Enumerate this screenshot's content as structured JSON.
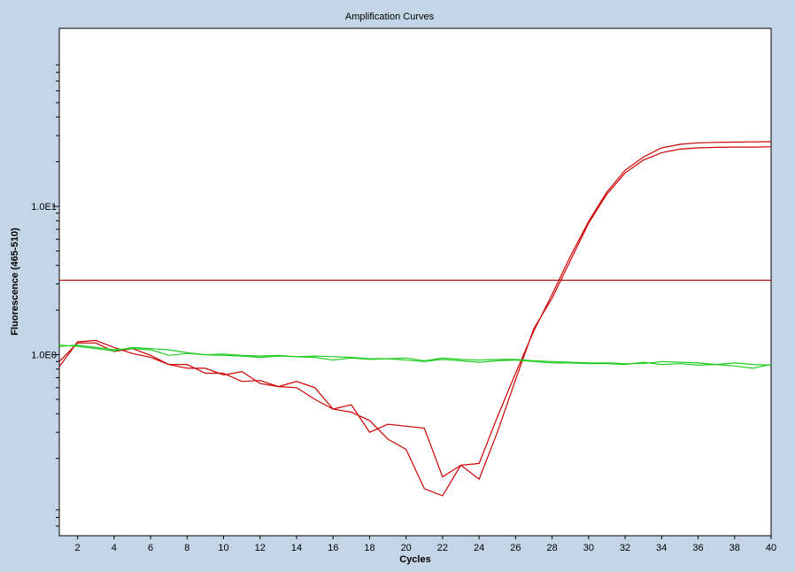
{
  "chart_data": {
    "type": "line",
    "title": "Amplification Curves",
    "xlabel": "Cycles",
    "ylabel": "Fluorescence (465-510)",
    "xlim": [
      1,
      40
    ],
    "ylim_log10": [
      -1.22,
      2.2
    ],
    "yscale": "log",
    "grid": false,
    "x_ticks": [
      2,
      4,
      6,
      8,
      10,
      12,
      14,
      16,
      18,
      20,
      22,
      24,
      26,
      28,
      30,
      32,
      34,
      36,
      38,
      40
    ],
    "x_tick_labels": [
      "2",
      "4",
      "6",
      "8",
      "10",
      "12",
      "14",
      "16",
      "18",
      "20",
      "22",
      "24",
      "26",
      "28",
      "30",
      "32",
      "34",
      "36",
      "38",
      "40"
    ],
    "y_labeled_ticks": [
      1,
      10
    ],
    "y_tick_labels": [
      "1.0E0",
      "1.0E1"
    ],
    "threshold": {
      "value": 3.18,
      "color": "#aa0000"
    },
    "series": [
      {
        "color": "#cc0000",
        "x": [
          1,
          2,
          3,
          4,
          5,
          6,
          7,
          8,
          9,
          10,
          11,
          12,
          13,
          14,
          15,
          16,
          17,
          18,
          19,
          20,
          21,
          22,
          23,
          24,
          25,
          26,
          27,
          28,
          29,
          30,
          31,
          32,
          33,
          34,
          35,
          36,
          37,
          38,
          39,
          40
        ],
        "y": [
          0.83,
          1.22,
          1.25,
          1.12,
          1.02,
          0.96,
          0.86,
          0.86,
          0.75,
          0.75,
          0.66,
          0.67,
          0.61,
          0.6,
          0.5,
          0.43,
          0.46,
          0.3,
          0.34,
          0.33,
          0.32,
          0.15,
          0.18,
          0.185,
          0.38,
          0.75,
          1.45,
          2.55,
          4.6,
          7.9,
          12.5,
          17.5,
          21.5,
          24.8,
          26.2,
          26.8,
          27.0,
          27.1,
          27.2,
          27.3
        ]
      },
      {
        "color": "#cc0000",
        "x": [
          1,
          2,
          3,
          4,
          5,
          6,
          7,
          8,
          9,
          10,
          11,
          12,
          13,
          14,
          15,
          16,
          17,
          18,
          19,
          20,
          21,
          22,
          23,
          24,
          25,
          26,
          27,
          28,
          29,
          30,
          31,
          32,
          33,
          34,
          35,
          36,
          37,
          38,
          39,
          40
        ],
        "y": [
          0.9,
          1.2,
          1.2,
          1.05,
          1.1,
          0.99,
          0.86,
          0.81,
          0.81,
          0.73,
          0.77,
          0.64,
          0.61,
          0.66,
          0.6,
          0.43,
          0.41,
          0.36,
          0.27,
          0.23,
          0.125,
          0.112,
          0.18,
          0.145,
          0.3,
          0.68,
          1.5,
          2.4,
          4.3,
          7.7,
          12.1,
          16.8,
          20.5,
          23.0,
          24.3,
          24.8,
          25.0,
          25.1,
          25.1,
          25.2
        ]
      },
      {
        "color": "#22cc22",
        "x": [
          1,
          2,
          3,
          4,
          5,
          6,
          7,
          8,
          9,
          10,
          11,
          12,
          13,
          14,
          15,
          16,
          17,
          18,
          19,
          20,
          21,
          22,
          23,
          24,
          25,
          26,
          27,
          28,
          29,
          30,
          31,
          32,
          33,
          34,
          35,
          36,
          37,
          38,
          39,
          40
        ],
        "y": [
          1.14,
          1.16,
          1.12,
          1.08,
          1.1,
          1.08,
          0.99,
          1.02,
          1.0,
          0.99,
          0.98,
          0.96,
          0.98,
          0.97,
          0.96,
          0.92,
          0.95,
          0.93,
          0.94,
          0.92,
          0.9,
          0.93,
          0.91,
          0.89,
          0.91,
          0.92,
          0.9,
          0.88,
          0.88,
          0.87,
          0.87,
          0.86,
          0.89,
          0.86,
          0.87,
          0.85,
          0.86,
          0.84,
          0.81,
          0.86
        ]
      },
      {
        "color": "#22cc22",
        "x": [
          1,
          2,
          3,
          4,
          5,
          6,
          7,
          8,
          9,
          10,
          11,
          12,
          13,
          14,
          15,
          16,
          17,
          18,
          19,
          20,
          21,
          22,
          23,
          24,
          25,
          26,
          27,
          28,
          29,
          30,
          31,
          32,
          33,
          34,
          35,
          36,
          37,
          38,
          39,
          40
        ],
        "y": [
          1.16,
          1.14,
          1.1,
          1.06,
          1.12,
          1.1,
          1.08,
          1.03,
          1.0,
          1.01,
          0.99,
          0.98,
          0.99,
          0.97,
          0.98,
          0.97,
          0.96,
          0.94,
          0.94,
          0.95,
          0.91,
          0.95,
          0.93,
          0.92,
          0.93,
          0.93,
          0.91,
          0.9,
          0.89,
          0.88,
          0.88,
          0.87,
          0.87,
          0.9,
          0.89,
          0.88,
          0.86,
          0.88,
          0.86,
          0.85
        ]
      }
    ]
  }
}
